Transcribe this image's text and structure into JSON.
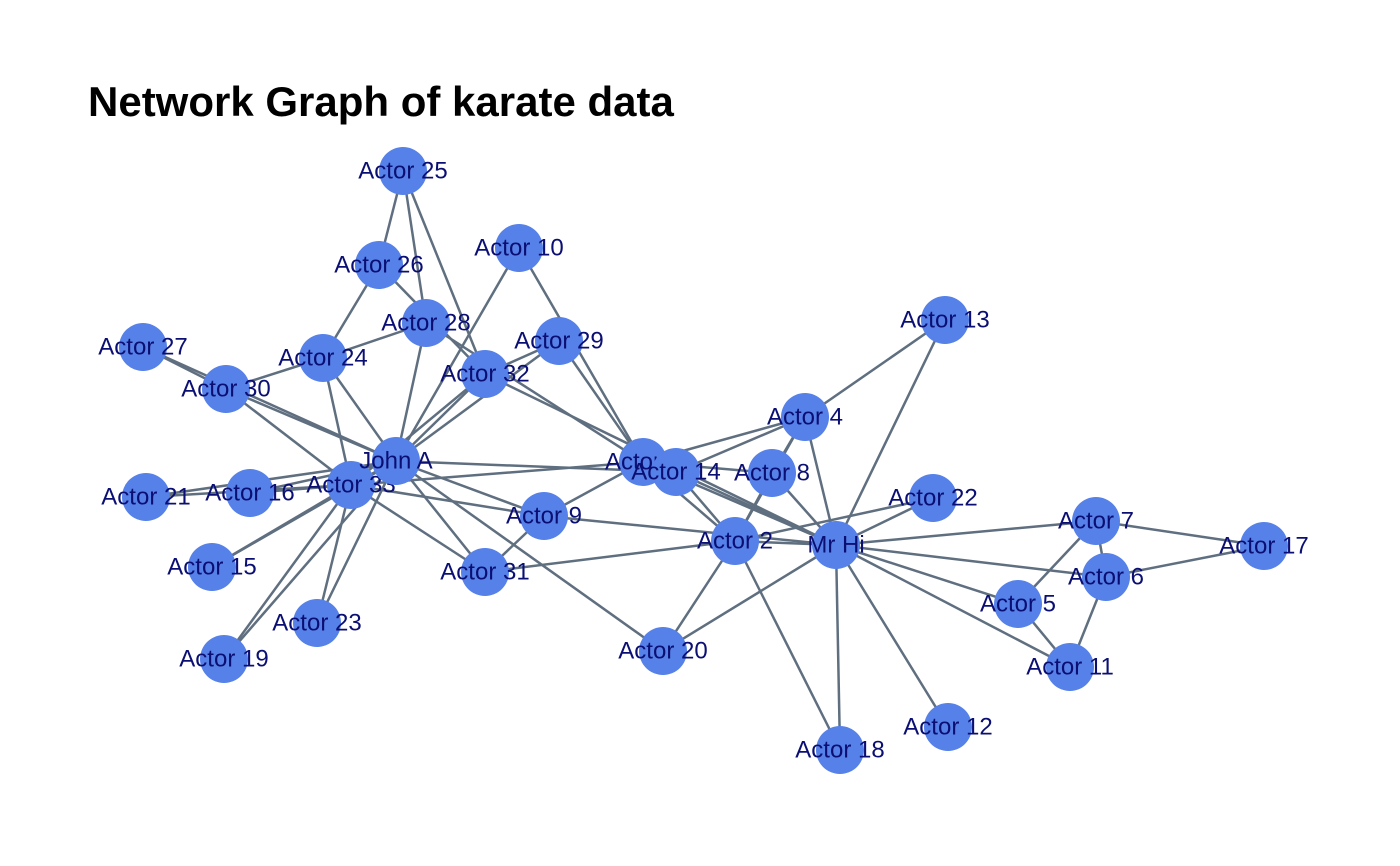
{
  "graph": {
    "title": "Network Graph of karate data",
    "colors": {
      "node": "#5681e8",
      "edge": "#5f6f80",
      "label": "#0b0f73"
    },
    "nodes": [
      {
        "id": "mr-hi",
        "label": "Mr Hi"
      },
      {
        "id": "actor-2",
        "label": "Actor 2"
      },
      {
        "id": "actor-3",
        "label": "Actor 3"
      },
      {
        "id": "actor-4",
        "label": "Actor 4"
      },
      {
        "id": "actor-5",
        "label": "Actor 5"
      },
      {
        "id": "actor-6",
        "label": "Actor 6"
      },
      {
        "id": "actor-7",
        "label": "Actor 7"
      },
      {
        "id": "actor-8",
        "label": "Actor 8"
      },
      {
        "id": "actor-9",
        "label": "Actor 9"
      },
      {
        "id": "actor-10",
        "label": "Actor 10"
      },
      {
        "id": "actor-11",
        "label": "Actor 11"
      },
      {
        "id": "actor-12",
        "label": "Actor 12"
      },
      {
        "id": "actor-13",
        "label": "Actor 13"
      },
      {
        "id": "actor-14",
        "label": "Actor 14"
      },
      {
        "id": "actor-15",
        "label": "Actor 15"
      },
      {
        "id": "actor-16",
        "label": "Actor 16"
      },
      {
        "id": "actor-17",
        "label": "Actor 17"
      },
      {
        "id": "actor-18",
        "label": "Actor 18"
      },
      {
        "id": "actor-19",
        "label": "Actor 19"
      },
      {
        "id": "actor-20",
        "label": "Actor 20"
      },
      {
        "id": "actor-21",
        "label": "Actor 21"
      },
      {
        "id": "actor-22",
        "label": "Actor 22"
      },
      {
        "id": "actor-23",
        "label": "Actor 23"
      },
      {
        "id": "actor-24",
        "label": "Actor 24"
      },
      {
        "id": "actor-25",
        "label": "Actor 25"
      },
      {
        "id": "actor-26",
        "label": "Actor 26"
      },
      {
        "id": "actor-27",
        "label": "Actor 27"
      },
      {
        "id": "actor-28",
        "label": "Actor 28"
      },
      {
        "id": "actor-29",
        "label": "Actor 29"
      },
      {
        "id": "actor-30",
        "label": "Actor 30"
      },
      {
        "id": "actor-31",
        "label": "Actor 31"
      },
      {
        "id": "actor-32",
        "label": "Actor 32"
      },
      {
        "id": "actor-33",
        "label": "Actor 33"
      },
      {
        "id": "john-a",
        "label": "John A"
      }
    ],
    "edges": [
      [
        "mr-hi",
        "actor-2"
      ],
      [
        "mr-hi",
        "actor-3"
      ],
      [
        "mr-hi",
        "actor-4"
      ],
      [
        "mr-hi",
        "actor-5"
      ],
      [
        "mr-hi",
        "actor-6"
      ],
      [
        "mr-hi",
        "actor-7"
      ],
      [
        "mr-hi",
        "actor-8"
      ],
      [
        "mr-hi",
        "actor-9"
      ],
      [
        "mr-hi",
        "actor-11"
      ],
      [
        "mr-hi",
        "actor-12"
      ],
      [
        "mr-hi",
        "actor-13"
      ],
      [
        "mr-hi",
        "actor-14"
      ],
      [
        "mr-hi",
        "actor-18"
      ],
      [
        "mr-hi",
        "actor-20"
      ],
      [
        "mr-hi",
        "actor-22"
      ],
      [
        "mr-hi",
        "actor-32"
      ],
      [
        "actor-2",
        "actor-3"
      ],
      [
        "actor-2",
        "actor-4"
      ],
      [
        "actor-2",
        "actor-8"
      ],
      [
        "actor-2",
        "actor-14"
      ],
      [
        "actor-2",
        "actor-18"
      ],
      [
        "actor-2",
        "actor-20"
      ],
      [
        "actor-2",
        "actor-22"
      ],
      [
        "actor-2",
        "actor-31"
      ],
      [
        "actor-3",
        "actor-4"
      ],
      [
        "actor-3",
        "actor-8"
      ],
      [
        "actor-3",
        "actor-9"
      ],
      [
        "actor-3",
        "actor-10"
      ],
      [
        "actor-3",
        "actor-14"
      ],
      [
        "actor-3",
        "actor-28"
      ],
      [
        "actor-3",
        "actor-29"
      ],
      [
        "actor-3",
        "actor-33"
      ],
      [
        "actor-4",
        "actor-8"
      ],
      [
        "actor-4",
        "actor-13"
      ],
      [
        "actor-4",
        "actor-14"
      ],
      [
        "actor-5",
        "actor-7"
      ],
      [
        "actor-5",
        "actor-11"
      ],
      [
        "actor-6",
        "actor-7"
      ],
      [
        "actor-6",
        "actor-11"
      ],
      [
        "actor-6",
        "actor-17"
      ],
      [
        "actor-7",
        "actor-17"
      ],
      [
        "actor-9",
        "actor-31"
      ],
      [
        "actor-9",
        "actor-33"
      ],
      [
        "actor-9",
        "john-a"
      ],
      [
        "actor-10",
        "john-a"
      ],
      [
        "actor-14",
        "john-a"
      ],
      [
        "actor-15",
        "actor-33"
      ],
      [
        "actor-15",
        "john-a"
      ],
      [
        "actor-16",
        "actor-33"
      ],
      [
        "actor-16",
        "john-a"
      ],
      [
        "actor-19",
        "actor-33"
      ],
      [
        "actor-19",
        "john-a"
      ],
      [
        "actor-20",
        "john-a"
      ],
      [
        "actor-21",
        "actor-33"
      ],
      [
        "actor-21",
        "john-a"
      ],
      [
        "actor-23",
        "actor-33"
      ],
      [
        "actor-23",
        "john-a"
      ],
      [
        "actor-24",
        "actor-26"
      ],
      [
        "actor-24",
        "actor-28"
      ],
      [
        "actor-24",
        "actor-30"
      ],
      [
        "actor-24",
        "actor-33"
      ],
      [
        "actor-24",
        "john-a"
      ],
      [
        "actor-25",
        "actor-26"
      ],
      [
        "actor-25",
        "actor-28"
      ],
      [
        "actor-25",
        "actor-32"
      ],
      [
        "actor-26",
        "actor-32"
      ],
      [
        "actor-27",
        "actor-30"
      ],
      [
        "actor-27",
        "john-a"
      ],
      [
        "actor-28",
        "john-a"
      ],
      [
        "actor-29",
        "actor-32"
      ],
      [
        "actor-29",
        "john-a"
      ],
      [
        "actor-30",
        "actor-33"
      ],
      [
        "actor-30",
        "john-a"
      ],
      [
        "actor-31",
        "actor-33"
      ],
      [
        "actor-31",
        "john-a"
      ],
      [
        "actor-32",
        "actor-33"
      ],
      [
        "actor-32",
        "john-a"
      ],
      [
        "actor-33",
        "john-a"
      ]
    ]
  }
}
